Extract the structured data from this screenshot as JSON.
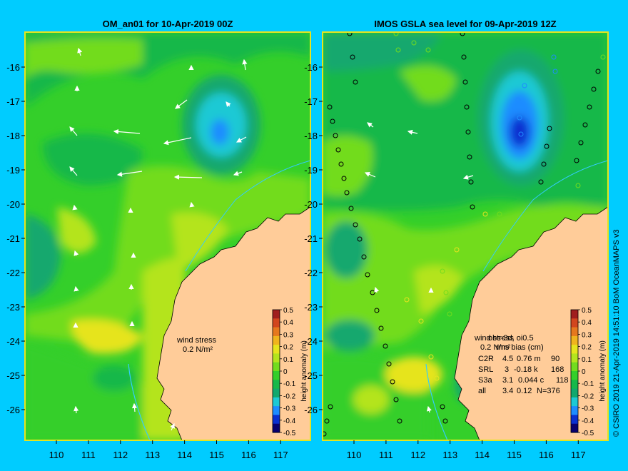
{
  "colors": {
    "background": "#00ccff",
    "land": "#ffcc99",
    "current": "#33ccff",
    "scale": [
      "#08006e",
      "#0a2fd0",
      "#1e8cff",
      "#1ec9d4",
      "#12a86e",
      "#16b84a",
      "#34cf2a",
      "#72dc1e",
      "#b4e41e",
      "#e6e41e",
      "#f0b41e",
      "#e6781e",
      "#d2461e",
      "#a01e1e"
    ]
  },
  "left_panel": {
    "title": "OM_an01 for 10-Apr-2019 00Z",
    "wind_label_1": "wind stress",
    "wind_label_2": "0.2 N/m²"
  },
  "right_panel": {
    "title": "IMOS GSLA sea level  for 09-Apr-2019 12Z",
    "overlay_1": "wind stress",
    "overlay_2": "0.2 N/m²",
    "overlay_3": "obs-3d, oi0.5",
    "overlay_4": "rms bias (cm)",
    "stats": [
      {
        "sat": "C2R",
        "rms": "4.5",
        "bias": "0.76 m",
        "n": "90"
      },
      {
        "sat": "SRL",
        "rms": "3",
        "bias": "-0.18 k",
        "n": "168"
      },
      {
        "sat": "S3a",
        "rms": "3.1",
        "bias": "0.044 c",
        "n": "118"
      },
      {
        "sat": "all",
        "rms": "3.4",
        "bias": "0.12",
        "n": "N=376"
      }
    ]
  },
  "axes": {
    "lon_ticks": [
      "110",
      "111",
      "112",
      "113",
      "114",
      "115",
      "116",
      "117"
    ],
    "lat_ticks": [
      "-16",
      "-17",
      "-18",
      "-19",
      "-20",
      "-21",
      "-22",
      "-23",
      "-24",
      "-25",
      "-26"
    ]
  },
  "colorbar": {
    "label": "height anomaly (m)",
    "ticks": [
      "0.5",
      "0.4",
      "0.3",
      "0.2",
      "0.1",
      "0",
      "-0.1",
      "-0.2",
      "-0.3",
      "-0.4",
      "-0.5"
    ]
  },
  "credit": "© CSIRO 2019   21-Apr-2019 14:51:10 BoM OceanMAPS v3"
}
